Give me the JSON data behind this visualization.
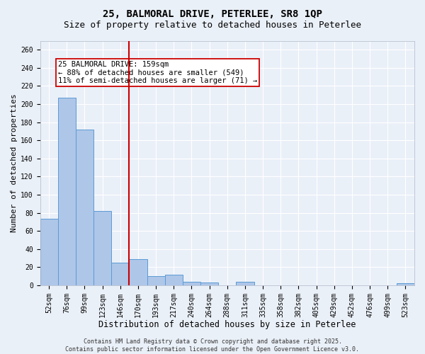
{
  "title1": "25, BALMORAL DRIVE, PETERLEE, SR8 1QP",
  "title2": "Size of property relative to detached houses in Peterlee",
  "xlabel": "Distribution of detached houses by size in Peterlee",
  "ylabel": "Number of detached properties",
  "bin_labels": [
    "52sqm",
    "76sqm",
    "99sqm",
    "123sqm",
    "146sqm",
    "170sqm",
    "193sqm",
    "217sqm",
    "240sqm",
    "264sqm",
    "288sqm",
    "311sqm",
    "335sqm",
    "358sqm",
    "382sqm",
    "405sqm",
    "429sqm",
    "452sqm",
    "476sqm",
    "499sqm",
    "523sqm"
  ],
  "bar_heights": [
    73,
    207,
    172,
    82,
    25,
    29,
    10,
    12,
    4,
    3,
    0,
    4,
    0,
    0,
    0,
    0,
    0,
    0,
    0,
    0,
    2
  ],
  "bar_color": "#aec6e8",
  "bar_edge_color": "#5b9bd5",
  "red_line_color": "#cc0000",
  "annotation_text": "25 BALMORAL DRIVE: 159sqm\n← 88% of detached houses are smaller (549)\n11% of semi-detached houses are larger (71) →",
  "annotation_box_color": "#ffffff",
  "annotation_box_edge": "#cc0000",
  "ylim": [
    0,
    270
  ],
  "yticks": [
    0,
    20,
    40,
    60,
    80,
    100,
    120,
    140,
    160,
    180,
    200,
    220,
    240,
    260
  ],
  "background_color": "#eaf0f8",
  "grid_color": "#ffffff",
  "footer_text": "Contains HM Land Registry data © Crown copyright and database right 2025.\nContains public sector information licensed under the Open Government Licence v3.0.",
  "title1_fontsize": 10,
  "title2_fontsize": 9,
  "xlabel_fontsize": 8.5,
  "ylabel_fontsize": 8,
  "tick_fontsize": 7,
  "annotation_fontsize": 7.5,
  "footer_fontsize": 6
}
